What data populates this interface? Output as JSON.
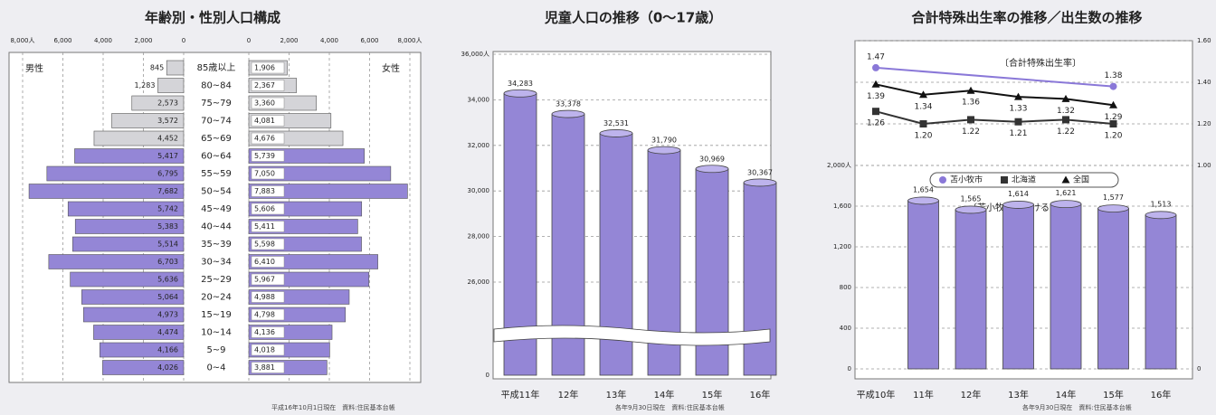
{
  "chart_data": [
    {
      "type": "pyramid",
      "title": "年齢別・性別人口構成",
      "categories": [
        "85歳以上",
        "80~84",
        "75~79",
        "70~74",
        "65~69",
        "60~64",
        "55~59",
        "50~54",
        "45~49",
        "40~44",
        "35~39",
        "30~34",
        "25~29",
        "20~24",
        "15~19",
        "10~14",
        "5~9",
        "0~4"
      ],
      "series": [
        {
          "name": "男性",
          "colors": [
            "#d4d4d8",
            "#d4d4d8",
            "#d4d4d8",
            "#d4d4d8",
            "#d4d4d8",
            "#9486d6",
            "#9486d6",
            "#9486d6",
            "#9486d6",
            "#9486d6",
            "#9486d6",
            "#9486d6",
            "#9486d6",
            "#9486d6",
            "#9486d6",
            "#9486d6",
            "#9486d6",
            "#9486d6"
          ],
          "values": [
            845,
            1283,
            2573,
            3572,
            4452,
            5417,
            6795,
            7682,
            5742,
            5383,
            5514,
            6703,
            5636,
            5064,
            4973,
            4474,
            4166,
            4026
          ],
          "value_labels": [
            "845",
            "1,283",
            "2,573",
            "3,572",
            "4,452",
            "5,417",
            "6,795",
            "7,682",
            "5,742",
            "5,383",
            "5,514",
            "6,703",
            "5,636",
            "5,064",
            "4,973",
            "4,474",
            "4,166",
            "4,026"
          ]
        },
        {
          "name": "女性",
          "colors": [
            "#d4d4d8",
            "#d4d4d8",
            "#d4d4d8",
            "#d4d4d8",
            "#d4d4d8",
            "#9486d6",
            "#9486d6",
            "#9486d6",
            "#9486d6",
            "#9486d6",
            "#9486d6",
            "#9486d6",
            "#9486d6",
            "#9486d6",
            "#9486d6",
            "#9486d6",
            "#9486d6",
            "#9486d6"
          ],
          "values": [
            1906,
            2367,
            3360,
            4081,
            4676,
            5739,
            7050,
            7883,
            5606,
            5411,
            5598,
            6410,
            5967,
            4988,
            4798,
            4136,
            4018,
            3881
          ],
          "value_labels": [
            "1,906",
            "2,367",
            "3,360",
            "4,081",
            "4,676",
            "5,739",
            "7,050",
            "7,883",
            "5,606",
            "5,411",
            "5,598",
            "6,410",
            "5,967",
            "4,988",
            "4,798",
            "4,136",
            "4,018",
            "3,881"
          ]
        }
      ],
      "xlim": [
        0,
        8000
      ],
      "xticks": [
        0,
        {
          "value": 2000,
          "label": "2,000"
        },
        {
          "value": 4000,
          "label": "4,000"
        },
        {
          "value": 6000,
          "label": "6,000"
        },
        {
          "value": 8000,
          "label": "8,000人"
        }
      ],
      "grid": true,
      "note": "平成16年10月1日現在　資料:住民基本台帳"
    },
    {
      "type": "bar",
      "title": "児童人口の推移（0～17歳）",
      "categories": [
        "平成11年",
        "12年",
        "13年",
        "14年",
        "15年",
        "16年"
      ],
      "values": [
        34283,
        33378,
        32531,
        31790,
        30969,
        30367
      ],
      "value_labels": [
        "34,283",
        "33,378",
        "32,531",
        "31,790",
        "30,969",
        "30,367"
      ],
      "color": "#9486d6",
      "ylim": [
        26000,
        36000
      ],
      "yticks": [
        0,
        {
          "value": 26000,
          "label": "26,000"
        },
        {
          "value": 28000,
          "label": "28,000"
        },
        {
          "value": 30000,
          "label": "30,000"
        },
        {
          "value": 32000,
          "label": "32,000"
        },
        {
          "value": 34000,
          "label": "34,000"
        },
        {
          "value": 36000,
          "label": "36,000人"
        }
      ],
      "axis_break": true,
      "grid": true,
      "note": "各年9月30日現在　資料:住民基本台帳"
    },
    {
      "type": "combo",
      "title": "合計特殊出生率の推移／出生数の推移",
      "categories": [
        "平成10年",
        "11年",
        "12年",
        "13年",
        "14年",
        "15年",
        "16年"
      ],
      "line_title": "〔合計特殊出生率〕",
      "bar_title": "〔苫小牧市における出生数〕",
      "series": [
        {
          "name": "苫小牧市",
          "marker": "circle",
          "color": "#8a78d8",
          "axis": "y2",
          "connect_gaps": true,
          "values": [
            1.47,
            null,
            null,
            null,
            null,
            1.38,
            null
          ],
          "value_labels": [
            "1.47",
            null,
            null,
            null,
            null,
            "1.38",
            null
          ]
        },
        {
          "name": "北海道",
          "marker": "square",
          "color": "#333333",
          "axis": "y2",
          "values": [
            1.26,
            1.2,
            1.22,
            1.21,
            1.22,
            1.2,
            null
          ],
          "value_labels": [
            "1.26",
            "1.20",
            "1.22",
            "1.21",
            "1.22",
            "1.20",
            null
          ]
        },
        {
          "name": "全国",
          "marker": "triangle",
          "color": "#111111",
          "axis": "y2",
          "values": [
            1.39,
            1.34,
            1.36,
            1.33,
            1.32,
            1.29,
            null
          ],
          "value_labels": [
            "1.39",
            "1.34",
            "1.36",
            "1.33",
            "1.32",
            "1.29",
            null
          ]
        }
      ],
      "bars": {
        "color": "#9486d6",
        "values": [
          null,
          1654,
          1565,
          1614,
          1621,
          1577,
          1513
        ],
        "value_labels": [
          null,
          "1,654",
          "1,565",
          "1,614",
          "1,621",
          "1,577",
          "1,513"
        ]
      },
      "ylim": [
        0,
        2000
      ],
      "yticks": [
        0,
        400,
        800,
        {
          "value": 1200,
          "label": "1,200"
        },
        {
          "value": 1600,
          "label": "1,600"
        },
        {
          "value": 2000,
          "label": "2,000人"
        }
      ],
      "y2lim": [
        1.0,
        1.6
      ],
      "y2ticks": [
        0,
        {
          "value": 1.0,
          "label": "1.00"
        },
        {
          "value": 1.2,
          "label": "1.20"
        },
        {
          "value": 1.4,
          "label": "1.40"
        },
        {
          "value": 1.6,
          "label": "1.60"
        }
      ],
      "axis_break": true,
      "grid": true,
      "note": "各年9月30日現在　資料:住民基本台帳"
    }
  ]
}
